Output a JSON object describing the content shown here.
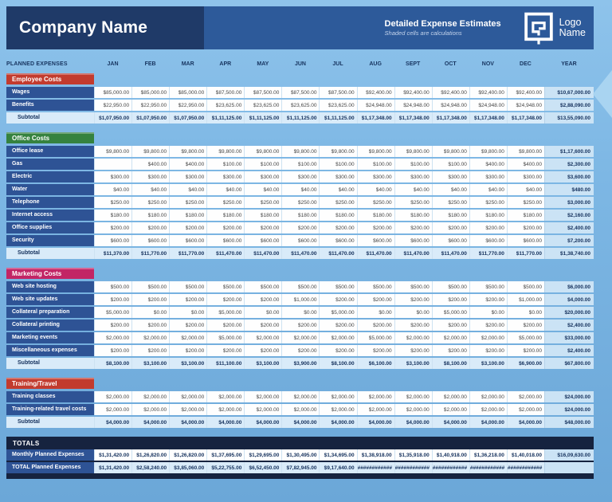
{
  "header": {
    "company_name": "Company Name",
    "title": "Detailed Expense Estimates",
    "subtitle": "Shaded cells are calculations",
    "logo_line1": "Logo",
    "logo_line2": "Name"
  },
  "columns": {
    "label": "PLANNED EXPENSES",
    "months": [
      "JAN",
      "FEB",
      "MAR",
      "APR",
      "MAY",
      "JUN",
      "JUL",
      "AUG",
      "SEPT",
      "OCT",
      "NOV",
      "DEC"
    ],
    "year": "YEAR"
  },
  "colors": {
    "employee_costs": "#c23b2e",
    "office_costs": "#35823f",
    "marketing_costs": "#c22565",
    "training_travel": "#c23b2e",
    "label_navy": "#2e5395",
    "totals_band": "#16233f",
    "header_left": "#1f3a68",
    "header_right": "#2d5a9a",
    "year_shade": "#cbe3f5",
    "subtotal_shade": "#d9ebf9"
  },
  "sections": [
    {
      "name": "Employee Costs",
      "color": "#c23b2e",
      "rows": [
        {
          "label": "Wages",
          "values": [
            "$85,000.00",
            "$85,000.00",
            "$85,000.00",
            "$87,500.00",
            "$87,500.00",
            "$87,500.00",
            "$87,500.00",
            "$92,400.00",
            "$92,400.00",
            "$92,400.00",
            "$92,400.00",
            "$92,400.00"
          ],
          "year": "$10,67,000.00"
        },
        {
          "label": "Benefits",
          "values": [
            "$22,950.00",
            "$22,950.00",
            "$22,950.00",
            "$23,625.00",
            "$23,625.00",
            "$23,625.00",
            "$23,625.00",
            "$24,948.00",
            "$24,948.00",
            "$24,948.00",
            "$24,948.00",
            "$24,948.00"
          ],
          "year": "$2,88,090.00"
        }
      ],
      "subtotal": {
        "label": "Subtotal",
        "values": [
          "$1,07,950.00",
          "$1,07,950.00",
          "$1,07,950.00",
          "$1,11,125.00",
          "$1,11,125.00",
          "$1,11,125.00",
          "$1,11,125.00",
          "$1,17,348.00",
          "$1,17,348.00",
          "$1,17,348.00",
          "$1,17,348.00",
          "$1,17,348.00"
        ],
        "year": "$13,55,090.00"
      }
    },
    {
      "name": "Office Costs",
      "color": "#35823f",
      "rows": [
        {
          "label": "Office lease",
          "values": [
            "$9,800.00",
            "$9,800.00",
            "$9,800.00",
            "$9,800.00",
            "$9,800.00",
            "$9,800.00",
            "$9,800.00",
            "$9,800.00",
            "$9,800.00",
            "$9,800.00",
            "$9,800.00",
            "$9,800.00"
          ],
          "year": "$1,17,600.00"
        },
        {
          "label": "Gas",
          "values": [
            "",
            "$400.00",
            "$400.00",
            "$100.00",
            "$100.00",
            "$100.00",
            "$100.00",
            "$100.00",
            "$100.00",
            "$100.00",
            "$400.00",
            "$400.00"
          ],
          "year": "$2,300.00"
        },
        {
          "label": "Electric",
          "values": [
            "$300.00",
            "$300.00",
            "$300.00",
            "$300.00",
            "$300.00",
            "$300.00",
            "$300.00",
            "$300.00",
            "$300.00",
            "$300.00",
            "$300.00",
            "$300.00"
          ],
          "year": "$3,600.00"
        },
        {
          "label": "Water",
          "values": [
            "$40.00",
            "$40.00",
            "$40.00",
            "$40.00",
            "$40.00",
            "$40.00",
            "$40.00",
            "$40.00",
            "$40.00",
            "$40.00",
            "$40.00",
            "$40.00"
          ],
          "year": "$480.00"
        },
        {
          "label": "Telephone",
          "values": [
            "$250.00",
            "$250.00",
            "$250.00",
            "$250.00",
            "$250.00",
            "$250.00",
            "$250.00",
            "$250.00",
            "$250.00",
            "$250.00",
            "$250.00",
            "$250.00"
          ],
          "year": "$3,000.00"
        },
        {
          "label": "Internet access",
          "values": [
            "$180.00",
            "$180.00",
            "$180.00",
            "$180.00",
            "$180.00",
            "$180.00",
            "$180.00",
            "$180.00",
            "$180.00",
            "$180.00",
            "$180.00",
            "$180.00"
          ],
          "year": "$2,160.00"
        },
        {
          "label": "Office supplies",
          "values": [
            "$200.00",
            "$200.00",
            "$200.00",
            "$200.00",
            "$200.00",
            "$200.00",
            "$200.00",
            "$200.00",
            "$200.00",
            "$200.00",
            "$200.00",
            "$200.00"
          ],
          "year": "$2,400.00"
        },
        {
          "label": "Security",
          "values": [
            "$600.00",
            "$600.00",
            "$600.00",
            "$600.00",
            "$600.00",
            "$600.00",
            "$600.00",
            "$600.00",
            "$600.00",
            "$600.00",
            "$600.00",
            "$600.00"
          ],
          "year": "$7,200.00"
        }
      ],
      "subtotal": {
        "label": "Subtotal",
        "values": [
          "$11,370.00",
          "$11,770.00",
          "$11,770.00",
          "$11,470.00",
          "$11,470.00",
          "$11,470.00",
          "$11,470.00",
          "$11,470.00",
          "$11,470.00",
          "$11,470.00",
          "$11,770.00",
          "$11,770.00"
        ],
        "year": "$1,38,740.00"
      }
    },
    {
      "name": "Marketing Costs",
      "color": "#c22565",
      "rows": [
        {
          "label": "Web site hosting",
          "values": [
            "$500.00",
            "$500.00",
            "$500.00",
            "$500.00",
            "$500.00",
            "$500.00",
            "$500.00",
            "$500.00",
            "$500.00",
            "$500.00",
            "$500.00",
            "$500.00"
          ],
          "year": "$6,000.00"
        },
        {
          "label": "Web site updates",
          "values": [
            "$200.00",
            "$200.00",
            "$200.00",
            "$200.00",
            "$200.00",
            "$1,000.00",
            "$200.00",
            "$200.00",
            "$200.00",
            "$200.00",
            "$200.00",
            "$1,000.00"
          ],
          "year": "$4,000.00"
        },
        {
          "label": "Collateral preparation",
          "values": [
            "$5,000.00",
            "$0.00",
            "$0.00",
            "$5,000.00",
            "$0.00",
            "$0.00",
            "$5,000.00",
            "$0.00",
            "$0.00",
            "$5,000.00",
            "$0.00",
            "$0.00"
          ],
          "year": "$20,000.00"
        },
        {
          "label": "Collateral printing",
          "values": [
            "$200.00",
            "$200.00",
            "$200.00",
            "$200.00",
            "$200.00",
            "$200.00",
            "$200.00",
            "$200.00",
            "$200.00",
            "$200.00",
            "$200.00",
            "$200.00"
          ],
          "year": "$2,400.00"
        },
        {
          "label": "Marketing events",
          "values": [
            "$2,000.00",
            "$2,000.00",
            "$2,000.00",
            "$5,000.00",
            "$2,000.00",
            "$2,000.00",
            "$2,000.00",
            "$5,000.00",
            "$2,000.00",
            "$2,000.00",
            "$2,000.00",
            "$5,000.00"
          ],
          "year": "$33,000.00"
        },
        {
          "label": "Miscellaneous expenses",
          "values": [
            "$200.00",
            "$200.00",
            "$200.00",
            "$200.00",
            "$200.00",
            "$200.00",
            "$200.00",
            "$200.00",
            "$200.00",
            "$200.00",
            "$200.00",
            "$200.00"
          ],
          "year": "$2,400.00"
        }
      ],
      "subtotal": {
        "label": "Subtotal",
        "values": [
          "$8,100.00",
          "$3,100.00",
          "$3,100.00",
          "$11,100.00",
          "$3,100.00",
          "$3,900.00",
          "$8,100.00",
          "$6,100.00",
          "$3,100.00",
          "$8,100.00",
          "$3,100.00",
          "$6,900.00"
        ],
        "year": "$67,800.00"
      }
    },
    {
      "name": "Training/Travel",
      "color": "#c23b2e",
      "rows": [
        {
          "label": "Training classes",
          "values": [
            "$2,000.00",
            "$2,000.00",
            "$2,000.00",
            "$2,000.00",
            "$2,000.00",
            "$2,000.00",
            "$2,000.00",
            "$2,000.00",
            "$2,000.00",
            "$2,000.00",
            "$2,000.00",
            "$2,000.00"
          ],
          "year": "$24,000.00"
        },
        {
          "label": "Training-related travel costs",
          "values": [
            "$2,000.00",
            "$2,000.00",
            "$2,000.00",
            "$2,000.00",
            "$2,000.00",
            "$2,000.00",
            "$2,000.00",
            "$2,000.00",
            "$2,000.00",
            "$2,000.00",
            "$2,000.00",
            "$2,000.00"
          ],
          "year": "$24,000.00"
        }
      ],
      "subtotal": {
        "label": "Subtotal",
        "values": [
          "$4,000.00",
          "$4,000.00",
          "$4,000.00",
          "$4,000.00",
          "$4,000.00",
          "$4,000.00",
          "$4,000.00",
          "$4,000.00",
          "$4,000.00",
          "$4,000.00",
          "$4,000.00",
          "$4,000.00"
        ],
        "year": "$48,000.00"
      }
    }
  ],
  "totals": {
    "title": "TOTALS",
    "rows": [
      {
        "label": "Monthly Planned Expenses",
        "style": "white",
        "values": [
          "$1,31,420.00",
          "$1,26,820.00",
          "$1,26,820.00",
          "$1,37,695.00",
          "$1,29,695.00",
          "$1,30,495.00",
          "$1,34,695.00",
          "$1,38,918.00",
          "$1,35,918.00",
          "$1,40,918.00",
          "$1,36,218.00",
          "$1,40,018.00"
        ],
        "year": "$16,09,630.00"
      },
      {
        "label": "TOTAL Planned Expenses",
        "style": "shaded",
        "values": [
          "$1,31,420.00",
          "$2,58,240.00",
          "$3,85,060.00",
          "$5,22,755.00",
          "$6,52,450.00",
          "$7,82,945.00",
          "$9,17,640.00",
          "############",
          "############",
          "############",
          "############",
          "############"
        ],
        "year": ""
      }
    ]
  }
}
